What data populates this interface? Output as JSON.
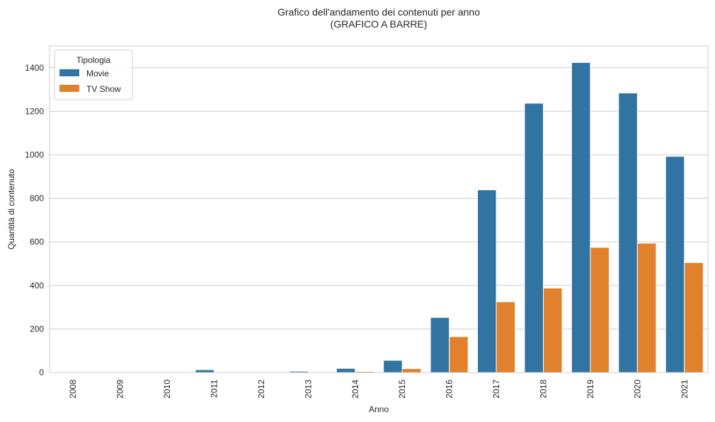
{
  "chart_data": {
    "type": "bar",
    "title_line1": "Grafico dell'andamento dei contenuti per anno",
    "title_line2": "(GRAFICO A BARRE)",
    "xlabel": "Anno",
    "ylabel": "Quantità di contenuto",
    "categories": [
      "2008",
      "2009",
      "2010",
      "2011",
      "2012",
      "2013",
      "2014",
      "2015",
      "2016",
      "2017",
      "2018",
      "2019",
      "2020",
      "2021"
    ],
    "ylim": [
      0,
      1500
    ],
    "yticks": [
      0,
      200,
      400,
      600,
      800,
      1000,
      1200,
      1400
    ],
    "grid": true,
    "legend_title": "Tipologia",
    "legend_position": "top-left",
    "series": [
      {
        "name": "Movie",
        "color": "#3274a1",
        "values": [
          1,
          2,
          1,
          13,
          3,
          6,
          19,
          56,
          253,
          839,
          1237,
          1424,
          1284,
          993
        ]
      },
      {
        "name": "TV Show",
        "color": "#e1812c",
        "values": [
          0,
          0,
          0,
          0,
          0,
          0,
          5,
          18,
          165,
          325,
          388,
          575,
          594,
          505
        ]
      }
    ]
  }
}
